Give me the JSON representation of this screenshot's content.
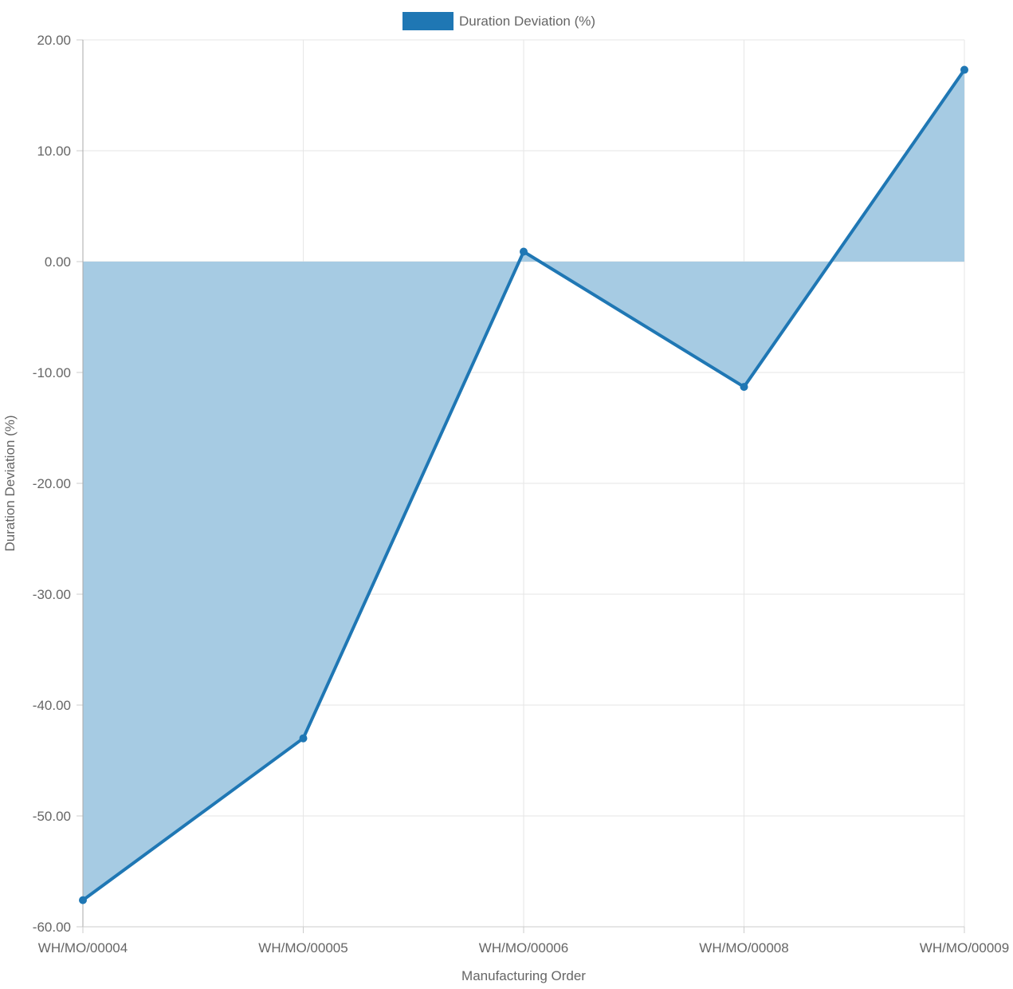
{
  "chart_data": {
    "type": "area",
    "legend": {
      "label": "Duration Deviation (%)",
      "position": "top-center"
    },
    "xlabel": "Manufacturing Order",
    "ylabel": "Duration Deviation (%)",
    "categories": [
      "WH/MO/00004",
      "WH/MO/00005",
      "WH/MO/00006",
      "WH/MO/00008",
      "WH/MO/00009"
    ],
    "series": [
      {
        "name": "Duration Deviation (%)",
        "values": [
          -57.6,
          -43.0,
          0.9,
          -11.3,
          17.3
        ],
        "line_color": "#1f77b4",
        "fill_color": "#a6cbe3"
      }
    ],
    "ylim": [
      -60,
      20
    ],
    "yticks": [
      "-60.00",
      "-50.00",
      "-40.00",
      "-30.00",
      "-20.00",
      "-10.00",
      "0.00",
      "10.00",
      "20.00"
    ],
    "grid": true,
    "fill_to": 0
  }
}
